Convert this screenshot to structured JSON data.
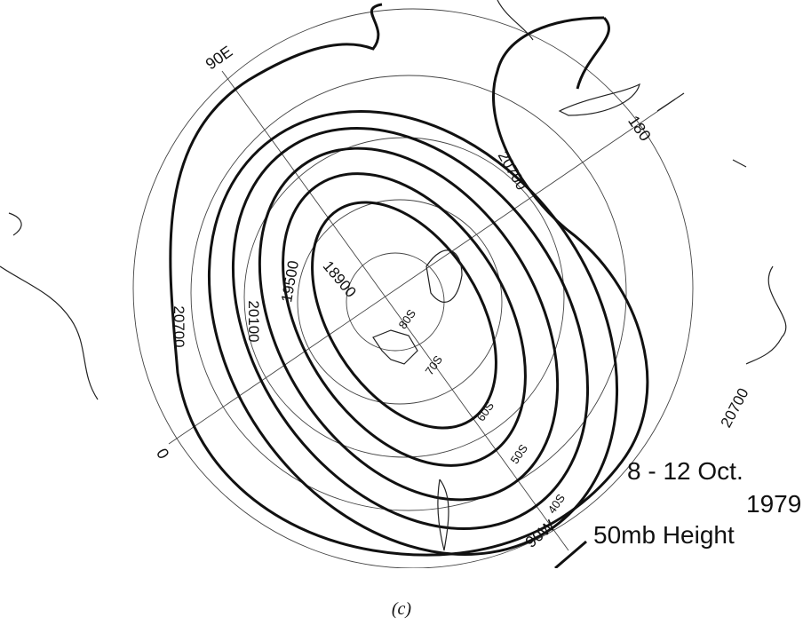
{
  "map": {
    "meridian_labels": [
      "90E",
      "180",
      "0",
      "90W"
    ],
    "latitude_labels": [
      "80S",
      "70S",
      "60S",
      "50S",
      "40S"
    ],
    "contour_labels": [
      "20700",
      "20100",
      "19500",
      "18900",
      "20700",
      "20700"
    ],
    "caption_lines": [
      "8 - 12 Oct.",
      "1979",
      "50mb Height"
    ]
  },
  "figure_label": "(c)"
}
